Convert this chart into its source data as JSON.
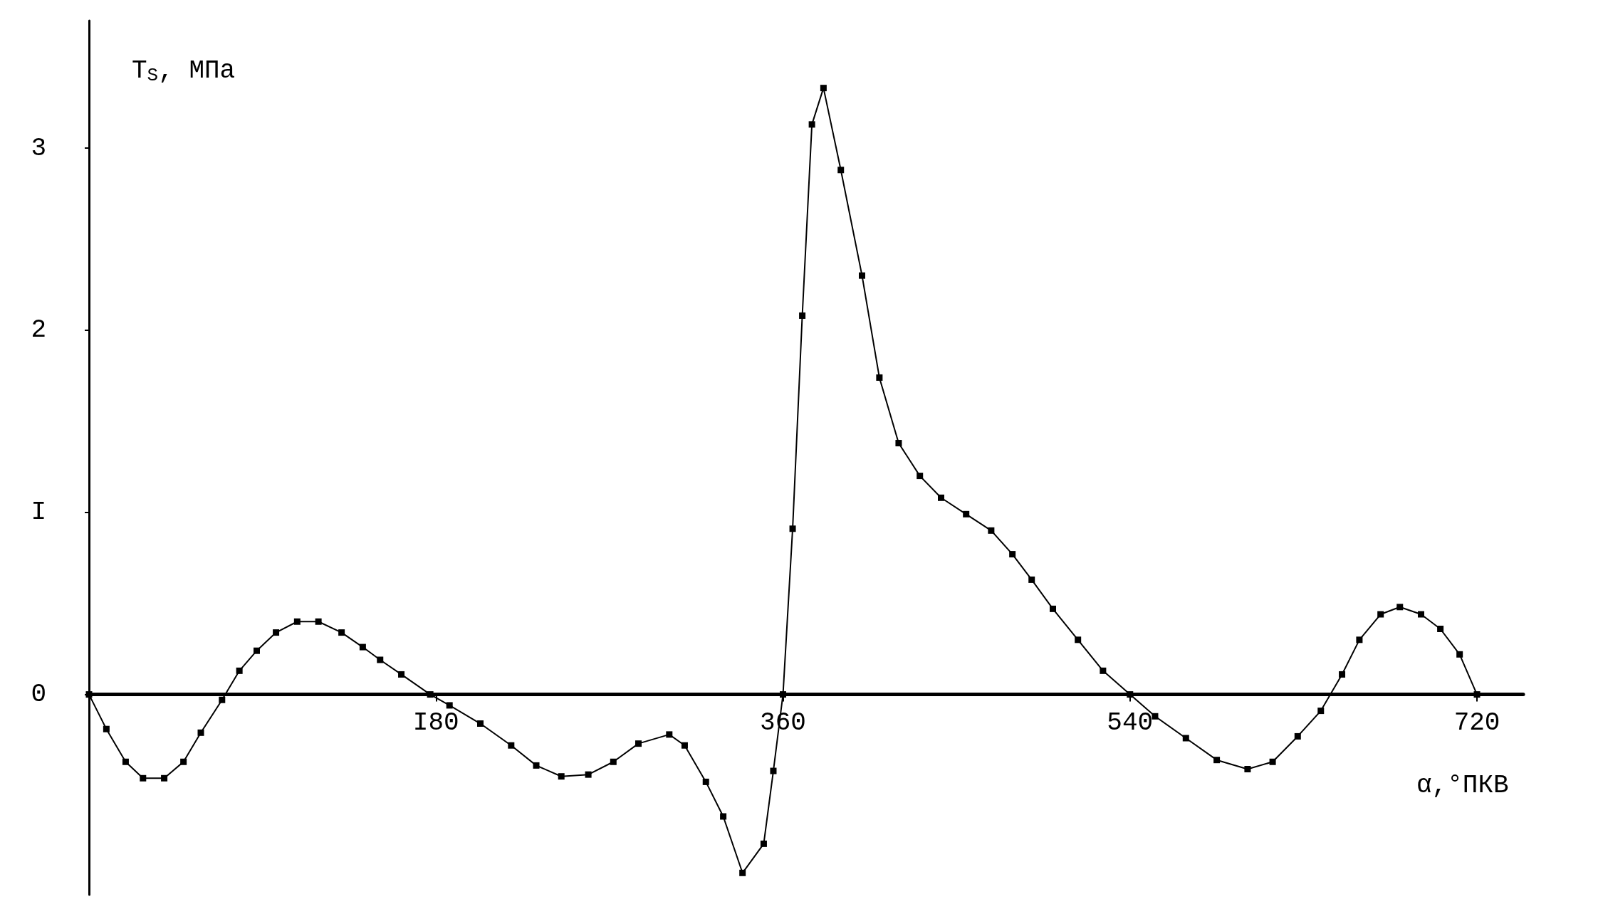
{
  "chart_data": {
    "type": "line",
    "xlabel": "α,°ПКВ",
    "ylabel": "T$_{S}$, МПа",
    "x": [
      0,
      9,
      19,
      28,
      39,
      49,
      58,
      69,
      78,
      87,
      97,
      108,
      119,
      131,
      142,
      151,
      162,
      177,
      187,
      203,
      219,
      232,
      245,
      259,
      272,
      285,
      301,
      309,
      320,
      329,
      339,
      350,
      355,
      360,
      365,
      370,
      375,
      381,
      390,
      401,
      410,
      420,
      431,
      442,
      455,
      468,
      479,
      489,
      500,
      513,
      526,
      540,
      553,
      569,
      585,
      601,
      614,
      627,
      639,
      650,
      659,
      670,
      680,
      691,
      701,
      711,
      720
    ],
    "series": [
      {
        "color": "#000000",
        "values": [
          0,
          -0.19,
          -0.37,
          -0.46,
          -0.46,
          -0.37,
          -0.21,
          -0.03,
          0.13,
          0.24,
          0.34,
          0.4,
          0.4,
          0.34,
          0.26,
          0.19,
          0.11,
          0,
          -0.06,
          -0.16,
          -0.28,
          -0.39,
          -0.45,
          -0.44,
          -0.37,
          -0.27,
          -0.22,
          -0.28,
          -0.48,
          -0.67,
          -0.98,
          -0.82,
          -0.42,
          0,
          0.91,
          2.08,
          3.13,
          3.33,
          2.88,
          2.3,
          1.74,
          1.38,
          1.2,
          1.08,
          0.99,
          0.9,
          0.77,
          0.63,
          0.47,
          0.3,
          0.13,
          0,
          -0.12,
          -0.24,
          -0.36,
          -0.41,
          -0.37,
          -0.23,
          -0.09,
          0.11,
          0.3,
          0.44,
          0.48,
          0.44,
          0.36,
          0.22,
          0
        ]
      }
    ],
    "xlim": [
      0,
      744
    ],
    "ylim": [
      -1.1,
      3.7
    ],
    "xticks": [
      {
        "value": 180,
        "label": "I80"
      },
      360,
      540,
      720
    ],
    "yticks": [
      0,
      {
        "value": 1,
        "label": "I"
      },
      2,
      3
    ],
    "marker": "square",
    "line_style": "solid",
    "grid": false
  }
}
